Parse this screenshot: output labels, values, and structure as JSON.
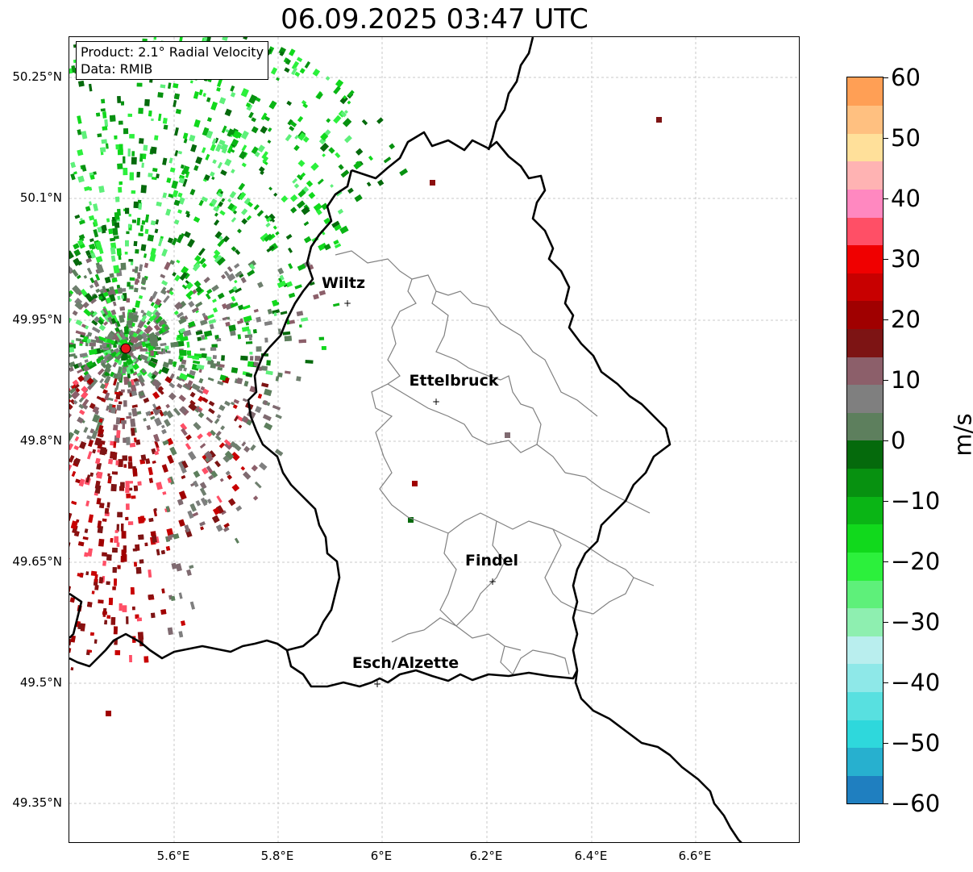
{
  "title": "06.09.2025 03:47 UTC",
  "info": {
    "product": "Product: 2.1° Radial Velocity",
    "data": "Data: RMIB"
  },
  "map": {
    "lat_labels": [
      "50.25°N",
      "50.1°N",
      "49.95°N",
      "49.8°N",
      "49.65°N",
      "49.5°N",
      "49.35°N"
    ],
    "lon_labels": [
      "5.6°E",
      "5.8°E",
      "6°E",
      "6.2°E",
      "6.4°E",
      "6.6°E"
    ],
    "cities": [
      {
        "name": "Wiltz"
      },
      {
        "name": "Ettelbruck"
      },
      {
        "name": "Findel"
      },
      {
        "name": "Esch/Alzette"
      }
    ],
    "radar_site_color": "#e8141a",
    "border_color": "#000000",
    "canton_color": "#808080"
  },
  "colorbar": {
    "unit": "m/s",
    "ticks": [
      "60",
      "50",
      "40",
      "30",
      "20",
      "10",
      "0",
      "−10",
      "−20",
      "−30",
      "−40",
      "−50",
      "−60"
    ],
    "range": [
      -60,
      60
    ],
    "colors": [
      "#1f7fc0",
      "#27b0cf",
      "#2ed8dc",
      "#58e0e0",
      "#8ee8e8",
      "#b9eeee",
      "#8eefb0",
      "#5ef07a",
      "#2cf03c",
      "#11d91c",
      "#0ab515",
      "#079110",
      "#056a0c",
      "#5d7f5d",
      "#7f7f7f",
      "#8c5f6a",
      "#7d1414",
      "#a00000",
      "#c80000",
      "#f00000",
      "#ff4f66",
      "#ff88c0",
      "#ffb3b3",
      "#ffe09a",
      "#ffc080",
      "#ff9f55"
    ]
  }
}
